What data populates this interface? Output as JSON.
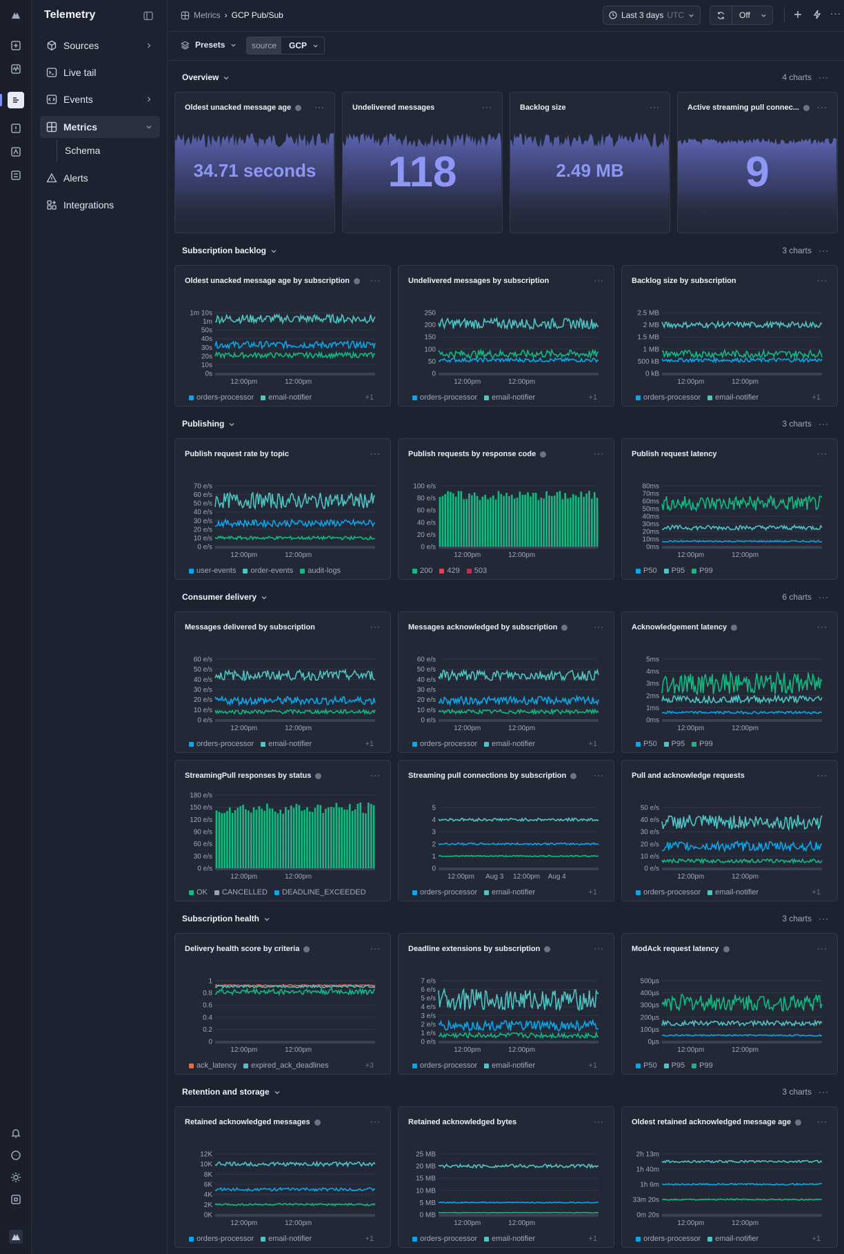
{
  "app": {
    "title": "Telemetry"
  },
  "sidebar": {
    "items": [
      {
        "label": "Sources",
        "icon": "cube-icon",
        "chev": true
      },
      {
        "label": "Live tail",
        "icon": "terminal-icon",
        "chev": false
      },
      {
        "label": "Events",
        "icon": "code-icon",
        "chev": true
      },
      {
        "label": "Metrics",
        "icon": "grid-icon",
        "chev": true,
        "selected": true
      },
      {
        "label": "Schema",
        "icon": "",
        "chev": false,
        "sub": true
      },
      {
        "label": "Alerts",
        "icon": "alert-triangle-icon",
        "chev": false
      },
      {
        "label": "Integrations",
        "icon": "apps-icon",
        "chev": false
      }
    ]
  },
  "header": {
    "breadcrumb": [
      "Metrics",
      "GCP Pub/Sub"
    ],
    "time_range": "Last 3 days",
    "timezone": "UTC",
    "refresh": "Off"
  },
  "filters": {
    "presets": "Presets",
    "source_key": "source",
    "source_value": "GCP"
  },
  "colors": {
    "teal": "#4fc4c2",
    "blue": "#0ba5e9",
    "green": "#12b981",
    "red": "#e53e5a",
    "gray": "#9aa1b1",
    "orange": "#e86a3d",
    "accent": "#8e97f5"
  },
  "sections": [
    {
      "title": "Overview",
      "count": "4 charts"
    },
    {
      "title": "Subscription backlog",
      "count": "3 charts"
    },
    {
      "title": "Publishing",
      "count": "3 charts"
    },
    {
      "title": "Consumer delivery",
      "count": "6 charts"
    },
    {
      "title": "Subscription health",
      "count": "3 charts"
    },
    {
      "title": "Retention and storage",
      "count": "3 charts"
    }
  ],
  "stats": [
    {
      "title": "Oldest unacked message age",
      "value": "34.71 seconds",
      "info": true
    },
    {
      "title": "Undelivered messages",
      "value": "118",
      "info": false
    },
    {
      "title": "Backlog size",
      "value": "2.49 MB",
      "info": false
    },
    {
      "title": "Active streaming pull connec...",
      "value": "9",
      "info": true
    }
  ],
  "chart_data": [
    {
      "title": "Oldest unacked message age by subscription",
      "info": true,
      "type": "line",
      "yticks": [
        "1m 10s",
        "1m",
        "50s",
        "40s",
        "30s",
        "20s",
        "10s",
        "0s"
      ],
      "xticks": [
        "12:00pm",
        "12:00pm"
      ],
      "ymax": 70,
      "series": [
        {
          "name": "orders-processor",
          "color": "#0ba5e9",
          "mean": 33,
          "amp": 4
        },
        {
          "name": "email-notifier",
          "color": "#4fc4c2",
          "mean": 63,
          "amp": 5
        },
        {
          "color": "#12b981",
          "mean": 21,
          "amp": 3
        }
      ],
      "legend": [
        {
          "name": "orders-processor",
          "color": "#0ba5e9"
        },
        {
          "name": "email-notifier",
          "color": "#4fc4c2"
        }
      ],
      "more": "+1"
    },
    {
      "title": "Undelivered messages by subscription",
      "info": false,
      "type": "line",
      "yticks": [
        "250",
        "200",
        "150",
        "100",
        "50",
        "0"
      ],
      "xticks": [
        "12:00pm",
        "12:00pm"
      ],
      "ymax": 250,
      "series": [
        {
          "name": "orders-processor",
          "color": "#0ba5e9",
          "mean": 55,
          "amp": 8
        },
        {
          "name": "email-notifier",
          "color": "#4fc4c2",
          "mean": 205,
          "amp": 22
        },
        {
          "color": "#12b981",
          "mean": 80,
          "amp": 16
        }
      ],
      "legend": [
        {
          "name": "orders-processor",
          "color": "#0ba5e9"
        },
        {
          "name": "email-notifier",
          "color": "#4fc4c2"
        }
      ],
      "more": "+1"
    },
    {
      "title": "Backlog size by subscription",
      "info": false,
      "type": "line",
      "yticks": [
        "2.5 MB",
        "2 MB",
        "1.5 MB",
        "1 MB",
        "500 kB",
        "0 kB"
      ],
      "xticks": [
        "12:00pm",
        "12:00pm"
      ],
      "ymax": 2.5,
      "series": [
        {
          "name": "orders-processor",
          "color": "#0ba5e9",
          "mean": 0.55,
          "amp": 0.08
        },
        {
          "name": "email-notifier",
          "color": "#4fc4c2",
          "mean": 2.0,
          "amp": 0.12
        },
        {
          "color": "#12b981",
          "mean": 0.8,
          "amp": 0.15
        }
      ],
      "legend": [
        {
          "name": "orders-processor",
          "color": "#0ba5e9"
        },
        {
          "name": "email-notifier",
          "color": "#4fc4c2"
        }
      ],
      "more": "+1"
    },
    {
      "title": "Publish request rate by topic",
      "info": false,
      "type": "line",
      "yticks": [
        "70 e/s",
        "60 e/s",
        "50 e/s",
        "40 e/s",
        "30 e/s",
        "20 e/s",
        "10 e/s",
        "0 e/s"
      ],
      "xticks": [
        "12:00pm",
        "12:00pm"
      ],
      "ymax": 70,
      "series": [
        {
          "name": "user-events",
          "color": "#0ba5e9",
          "mean": 27,
          "amp": 4
        },
        {
          "name": "order-events",
          "color": "#4fc4c2",
          "mean": 53,
          "amp": 9
        },
        {
          "name": "audit-logs",
          "color": "#12b981",
          "mean": 10,
          "amp": 2
        }
      ],
      "legend": [
        {
          "name": "user-events",
          "color": "#0ba5e9"
        },
        {
          "name": "order-events",
          "color": "#4fc4c2"
        },
        {
          "name": "audit-logs",
          "color": "#12b981"
        }
      ],
      "more": ""
    },
    {
      "title": "Publish requests by response code",
      "info": true,
      "type": "bar",
      "yticks": [
        "100 e/s",
        "80 e/s",
        "60 e/s",
        "40 e/s",
        "20 e/s",
        "0 e/s"
      ],
      "xticks": [
        "12:00pm",
        "12:00pm"
      ],
      "ymax": 100,
      "series": [
        {
          "name": "200",
          "color": "#12b981",
          "mean": 84,
          "amp": 8
        }
      ],
      "legend": [
        {
          "name": "200",
          "color": "#12b981"
        },
        {
          "name": "429",
          "color": "#e53e5a"
        },
        {
          "name": "503",
          "color": "#c0304a"
        }
      ],
      "more": ""
    },
    {
      "title": "Publish request latency",
      "info": false,
      "type": "line",
      "yticks": [
        "80ms",
        "70ms",
        "60ms",
        "50ms",
        "40ms",
        "30ms",
        "20ms",
        "10ms",
        "0ms"
      ],
      "xticks": [
        "12:00pm",
        "12:00pm"
      ],
      "ymax": 80,
      "series": [
        {
          "name": "P50",
          "color": "#0ba5e9",
          "mean": 7,
          "amp": 1
        },
        {
          "name": "P95",
          "color": "#4fc4c2",
          "mean": 25,
          "amp": 3
        },
        {
          "name": "P99",
          "color": "#12b981",
          "mean": 57,
          "amp": 10
        }
      ],
      "legend": [
        {
          "name": "P50",
          "color": "#0ba5e9"
        },
        {
          "name": "P95",
          "color": "#4fc4c2"
        },
        {
          "name": "P99",
          "color": "#12b981"
        }
      ],
      "more": ""
    },
    {
      "title": "Messages delivered by subscription",
      "info": false,
      "type": "line",
      "yticks": [
        "60 e/s",
        "50 e/s",
        "40 e/s",
        "30 e/s",
        "20 e/s",
        "10 e/s",
        "0 e/s"
      ],
      "xticks": [
        "12:00pm",
        "12:00pm"
      ],
      "ymax": 60,
      "series": [
        {
          "name": "orders-processor",
          "color": "#0ba5e9",
          "mean": 19,
          "amp": 4
        },
        {
          "name": "email-notifier",
          "color": "#4fc4c2",
          "mean": 44,
          "amp": 5
        },
        {
          "color": "#12b981",
          "mean": 8,
          "amp": 2
        }
      ],
      "legend": [
        {
          "name": "orders-processor",
          "color": "#0ba5e9"
        },
        {
          "name": "email-notifier",
          "color": "#4fc4c2"
        }
      ],
      "more": "+1"
    },
    {
      "title": "Messages acknowledged by subscription",
      "info": true,
      "type": "line",
      "yticks": [
        "60 e/s",
        "50 e/s",
        "40 e/s",
        "30 e/s",
        "20 e/s",
        "10 e/s",
        "0 e/s"
      ],
      "xticks": [
        "12:00pm",
        "12:00pm"
      ],
      "ymax": 60,
      "series": [
        {
          "name": "orders-processor",
          "color": "#0ba5e9",
          "mean": 19,
          "amp": 4
        },
        {
          "name": "email-notifier",
          "color": "#4fc4c2",
          "mean": 44,
          "amp": 5
        },
        {
          "color": "#12b981",
          "mean": 8,
          "amp": 2
        }
      ],
      "legend": [
        {
          "name": "orders-processor",
          "color": "#0ba5e9"
        },
        {
          "name": "email-notifier",
          "color": "#4fc4c2"
        }
      ],
      "more": "+1"
    },
    {
      "title": "Acknowledgement latency",
      "info": true,
      "type": "line",
      "yticks": [
        "5ms",
        "4ms",
        "3ms",
        "2ms",
        "1ms",
        "0ms"
      ],
      "xticks": [
        "12:00pm",
        "12:00pm"
      ],
      "ymax": 5,
      "series": [
        {
          "name": "P50",
          "color": "#0ba5e9",
          "mean": 0.6,
          "amp": 0.1
        },
        {
          "name": "P95",
          "color": "#4fc4c2",
          "mean": 1.7,
          "amp": 0.3
        },
        {
          "name": "P99",
          "color": "#12b981",
          "mean": 3.0,
          "amp": 0.9
        }
      ],
      "legend": [
        {
          "name": "P50",
          "color": "#0ba5e9"
        },
        {
          "name": "P95",
          "color": "#4fc4c2"
        },
        {
          "name": "P99",
          "color": "#12b981"
        }
      ],
      "more": ""
    },
    {
      "title": "StreamingPull responses by status",
      "info": true,
      "type": "bar",
      "yticks": [
        "180 e/s",
        "150 e/s",
        "120 e/s",
        "90 e/s",
        "60 e/s",
        "30 e/s",
        "0 e/s"
      ],
      "xticks": [
        "12:00pm",
        "12:00pm"
      ],
      "ymax": 180,
      "series": [
        {
          "name": "OK",
          "color": "#12b981",
          "mean": 148,
          "amp": 14
        }
      ],
      "legend": [
        {
          "name": "OK",
          "color": "#12b981"
        },
        {
          "name": "CANCELLED",
          "color": "#9aa1b1"
        },
        {
          "name": "DEADLINE_EXCEEDED",
          "color": "#0ba5e9"
        }
      ],
      "more": ""
    },
    {
      "title": "Streaming pull connections by subscription",
      "info": true,
      "type": "line",
      "yticks": [
        "5",
        "4",
        "3",
        "2",
        "1",
        "0"
      ],
      "xticks": [
        "12:00pm",
        "Aug 3",
        "12:00pm",
        "Aug 4"
      ],
      "ymax": 5,
      "series": [
        {
          "name": "orders-processor",
          "color": "#0ba5e9",
          "mean": 2,
          "amp": 0.08
        },
        {
          "name": "email-notifier",
          "color": "#4fc4c2",
          "mean": 4,
          "amp": 0.12
        },
        {
          "color": "#12b981",
          "mean": 1,
          "amp": 0.05
        }
      ],
      "legend": [
        {
          "name": "orders-processor",
          "color": "#0ba5e9"
        },
        {
          "name": "email-notifier",
          "color": "#4fc4c2"
        }
      ],
      "more": "+1"
    },
    {
      "title": "Pull and acknowledge requests",
      "info": false,
      "type": "line",
      "yticks": [
        "50 e/s",
        "40 e/s",
        "30 e/s",
        "20 e/s",
        "10 e/s",
        "0 e/s"
      ],
      "xticks": [
        "12:00pm",
        "12:00pm"
      ],
      "ymax": 50,
      "series": [
        {
          "name": "orders-processor",
          "color": "#0ba5e9",
          "mean": 18,
          "amp": 4
        },
        {
          "name": "email-notifier",
          "color": "#4fc4c2",
          "mean": 38,
          "amp": 6
        },
        {
          "color": "#12b981",
          "mean": 6,
          "amp": 1.5
        }
      ],
      "legend": [
        {
          "name": "orders-processor",
          "color": "#0ba5e9"
        },
        {
          "name": "email-notifier",
          "color": "#4fc4c2"
        }
      ],
      "more": "+1"
    },
    {
      "title": "Delivery health score by criteria",
      "info": true,
      "type": "line",
      "yticks": [
        "1",
        "0.8",
        "0.6",
        "0.4",
        "0.2",
        "0"
      ],
      "xticks": [
        "12:00pm",
        "12:00pm"
      ],
      "ymax": 1.05,
      "series": [
        {
          "name": "ack_latency",
          "color": "#e86a3d",
          "mean": 0.97,
          "amp": 0.01
        },
        {
          "name": "expired_ack_deadlines",
          "color": "#4fc4c2",
          "mean": 0.95,
          "amp": 0.02
        },
        {
          "color": "#12b981",
          "mean": 0.86,
          "amp": 0.05
        }
      ],
      "legend": [
        {
          "name": "ack_latency",
          "color": "#e86a3d"
        },
        {
          "name": "expired_ack_deadlines",
          "color": "#4fc4c2"
        }
      ],
      "more": "+3"
    },
    {
      "title": "Deadline extensions by subscription",
      "info": true,
      "type": "line",
      "yticks": [
        "7 e/s",
        "6 e/s",
        "5 e/s",
        "4 e/s",
        "3 e/s",
        "2 e/s",
        "1 e/s",
        "0 e/s"
      ],
      "xticks": [
        "12:00pm",
        "12:00pm"
      ],
      "ymax": 7,
      "series": [
        {
          "name": "orders-processor",
          "color": "#0ba5e9",
          "mean": 1.8,
          "amp": 0.6
        },
        {
          "name": "email-notifier",
          "color": "#4fc4c2",
          "mean": 4.8,
          "amp": 1.2
        },
        {
          "color": "#12b981",
          "mean": 0.7,
          "amp": 0.3
        }
      ],
      "legend": [
        {
          "name": "orders-processor",
          "color": "#0ba5e9"
        },
        {
          "name": "email-notifier",
          "color": "#4fc4c2"
        }
      ],
      "more": "+1"
    },
    {
      "title": "ModAck request latency",
      "info": true,
      "type": "line",
      "yticks": [
        "500µs",
        "400µs",
        "300µs",
        "200µs",
        "100µs",
        "0µs"
      ],
      "xticks": [
        "12:00pm",
        "12:00pm"
      ],
      "ymax": 500,
      "series": [
        {
          "name": "P50",
          "color": "#0ba5e9",
          "mean": 50,
          "amp": 6
        },
        {
          "name": "P95",
          "color": "#4fc4c2",
          "mean": 150,
          "amp": 20
        },
        {
          "name": "P99",
          "color": "#12b981",
          "mean": 320,
          "amp": 70
        }
      ],
      "legend": [
        {
          "name": "P50",
          "color": "#0ba5e9"
        },
        {
          "name": "P95",
          "color": "#4fc4c2"
        },
        {
          "name": "P99",
          "color": "#12b981"
        }
      ],
      "more": ""
    },
    {
      "title": "Retained acknowledged messages",
      "info": true,
      "type": "line",
      "yticks": [
        "12K",
        "10K",
        "8K",
        "6K",
        "4K",
        "2K",
        "0K"
      ],
      "xticks": [
        "12:00pm",
        "12:00pm"
      ],
      "ymax": 12,
      "series": [
        {
          "name": "orders-processor",
          "color": "#0ba5e9",
          "mean": 5,
          "amp": 0.3
        },
        {
          "name": "email-notifier",
          "color": "#4fc4c2",
          "mean": 10,
          "amp": 0.4
        },
        {
          "color": "#12b981",
          "mean": 2,
          "amp": 0.2
        }
      ],
      "legend": [
        {
          "name": "orders-processor",
          "color": "#0ba5e9"
        },
        {
          "name": "email-notifier",
          "color": "#4fc4c2"
        }
      ],
      "more": "+1"
    },
    {
      "title": "Retained acknowledged bytes",
      "info": false,
      "type": "line",
      "yticks": [
        "25 MB",
        "20 MB",
        "15 MB",
        "10 MB",
        "5 MB",
        "0 MB"
      ],
      "xticks": [
        "12:00pm",
        "12:00pm"
      ],
      "ymax": 25,
      "series": [
        {
          "name": "orders-processor",
          "color": "#0ba5e9",
          "mean": 5,
          "amp": 0.2
        },
        {
          "name": "email-notifier",
          "color": "#4fc4c2",
          "mean": 20,
          "amp": 0.7
        },
        {
          "color": "#12b981",
          "mean": 0.8,
          "amp": 0.1
        }
      ],
      "legend": [
        {
          "name": "orders-processor",
          "color": "#0ba5e9"
        },
        {
          "name": "email-notifier",
          "color": "#4fc4c2"
        }
      ],
      "more": "+1"
    },
    {
      "title": "Oldest retained acknowledged message age",
      "info": true,
      "type": "line",
      "yticks": [
        "2h 13m",
        "1h 40m",
        "1h 6m",
        "33m 20s",
        "0m 20s"
      ],
      "xticks": [
        "12:00pm",
        "12:00pm"
      ],
      "ymax": 8000,
      "series": [
        {
          "name": "orders-processor",
          "color": "#0ba5e9",
          "mean": 4000,
          "amp": 100
        },
        {
          "name": "email-notifier",
          "color": "#4fc4c2",
          "mean": 7000,
          "amp": 150
        },
        {
          "color": "#12b981",
          "mean": 2000,
          "amp": 80
        }
      ],
      "legend": [
        {
          "name": "orders-processor",
          "color": "#0ba5e9"
        },
        {
          "name": "email-notifier",
          "color": "#4fc4c2"
        }
      ],
      "more": "+1"
    }
  ]
}
